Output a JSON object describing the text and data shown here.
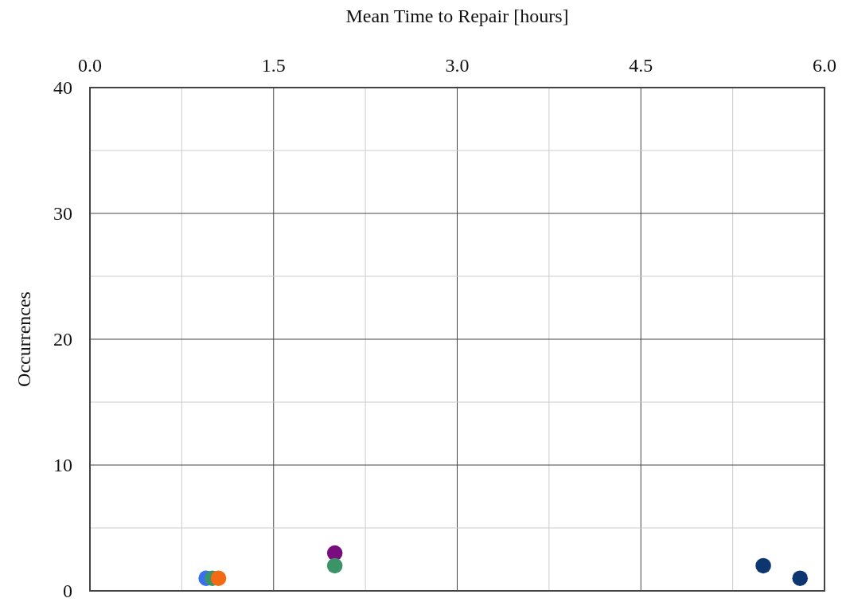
{
  "chart_data": {
    "type": "scatter",
    "xlabel": "Mean Time to Repair [hours]",
    "ylabel": "Occurrences",
    "x": [
      0.95,
      1.0,
      1.05,
      2.0,
      2.0,
      5.5,
      5.8
    ],
    "values": [
      1,
      1,
      1,
      3,
      2,
      2,
      1
    ],
    "colors": [
      "#3a6ff0",
      "#3a9468",
      "#f36a14",
      "#7a0d7e",
      "#3a9468",
      "#0d3570",
      "#0d3570"
    ],
    "xlim": [
      0,
      6
    ],
    "xticks": [
      {
        "value": 0,
        "label": "0.0"
      },
      {
        "value": 0.75,
        "label": null
      },
      {
        "value": 1.5,
        "label": "1.5"
      },
      {
        "value": 2.25,
        "label": null
      },
      {
        "value": 3,
        "label": "3.0"
      },
      {
        "value": 3.75,
        "label": null
      },
      {
        "value": 4.5,
        "label": "4.5"
      },
      {
        "value": 5.25,
        "label": null
      },
      {
        "value": 6,
        "label": "6.0"
      }
    ],
    "ylim": [
      0,
      40
    ],
    "yticks": [
      0,
      {
        "value": 5,
        "label": null
      },
      10,
      {
        "value": 15,
        "label": null
      },
      20,
      {
        "value": 25,
        "label": null
      },
      30,
      {
        "value": 35,
        "label": null
      },
      40
    ],
    "grid": true,
    "marker": "circle"
  }
}
